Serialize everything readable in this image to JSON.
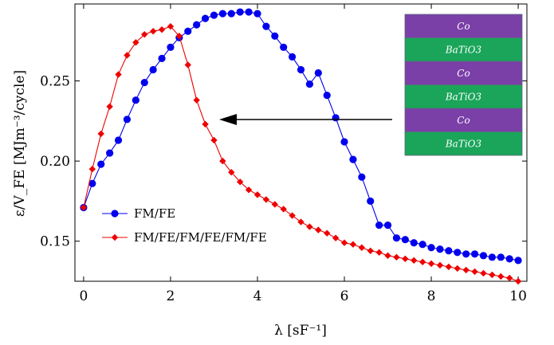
{
  "chart_data": {
    "type": "line",
    "xlabel": "λ [sF⁻¹]",
    "ylabel": "ε/V_FE [MJm⁻³/cycle]",
    "xlim": [
      -0.2,
      10.2
    ],
    "ylim": [
      0.125,
      0.298
    ],
    "xticks": [
      0,
      2,
      4,
      6,
      8,
      10
    ],
    "yticks": [
      0.15,
      0.2,
      0.25
    ],
    "ytick_labels": [
      "0.15",
      "0.20",
      "0.25"
    ],
    "grid": false,
    "legend": "lower-left",
    "series": [
      {
        "name": "FM/FE",
        "color": "#0000ee",
        "marker": "circle",
        "x": [
          0,
          0.2,
          0.4,
          0.6,
          0.8,
          1.0,
          1.2,
          1.4,
          1.6,
          1.8,
          2.0,
          2.2,
          2.4,
          2.6,
          2.8,
          3.0,
          3.2,
          3.4,
          3.6,
          3.8,
          4.0,
          4.2,
          4.4,
          4.6,
          4.8,
          5.0,
          5.2,
          5.4,
          5.6,
          5.8,
          6.0,
          6.2,
          6.4,
          6.6,
          6.8,
          7.0,
          7.2,
          7.4,
          7.6,
          7.8,
          8.0,
          8.2,
          8.4,
          8.6,
          8.8,
          9.0,
          9.2,
          9.4,
          9.6,
          9.8,
          10.0
        ],
        "y": [
          0.171,
          0.186,
          0.198,
          0.205,
          0.213,
          0.226,
          0.238,
          0.249,
          0.257,
          0.264,
          0.271,
          0.277,
          0.281,
          0.285,
          0.289,
          0.291,
          0.292,
          0.292,
          0.293,
          0.293,
          0.292,
          0.284,
          0.278,
          0.271,
          0.265,
          0.257,
          0.248,
          0.255,
          0.241,
          0.227,
          0.212,
          0.201,
          0.19,
          0.175,
          0.16,
          0.16,
          0.152,
          0.151,
          0.149,
          0.148,
          0.146,
          0.145,
          0.144,
          0.143,
          0.142,
          0.142,
          0.141,
          0.14,
          0.14,
          0.139,
          0.138
        ]
      },
      {
        "name": "FM/FE/FM/FE/FM/FE",
        "color": "#ee0000",
        "marker": "diamond",
        "x": [
          0,
          0.2,
          0.4,
          0.6,
          0.8,
          1.0,
          1.2,
          1.4,
          1.6,
          1.8,
          2.0,
          2.2,
          2.4,
          2.6,
          2.8,
          3.0,
          3.2,
          3.4,
          3.6,
          3.8,
          4.0,
          4.2,
          4.4,
          4.6,
          4.8,
          5.0,
          5.2,
          5.4,
          5.6,
          5.8,
          6.0,
          6.2,
          6.4,
          6.6,
          6.8,
          7.0,
          7.2,
          7.4,
          7.6,
          7.8,
          8.0,
          8.2,
          8.4,
          8.6,
          8.8,
          9.0,
          9.2,
          9.4,
          9.6,
          9.8,
          10.0
        ],
        "y": [
          0.171,
          0.195,
          0.217,
          0.234,
          0.254,
          0.266,
          0.274,
          0.279,
          0.281,
          0.282,
          0.284,
          0.278,
          0.26,
          0.238,
          0.223,
          0.213,
          0.2,
          0.193,
          0.187,
          0.182,
          0.179,
          0.176,
          0.173,
          0.17,
          0.166,
          0.162,
          0.159,
          0.157,
          0.155,
          0.152,
          0.149,
          0.148,
          0.146,
          0.144,
          0.143,
          0.141,
          0.14,
          0.139,
          0.138,
          0.137,
          0.136,
          0.135,
          0.134,
          0.133,
          0.132,
          0.131,
          0.13,
          0.129,
          0.128,
          0.127,
          0.125
        ]
      }
    ]
  },
  "inset": {
    "layers": [
      {
        "label": "Co",
        "color": "#7b3fa8"
      },
      {
        "label": "BaTiO3",
        "color": "#1aa55a"
      },
      {
        "label": "Co",
        "color": "#7b3fa8"
      },
      {
        "label": "BaTiO3",
        "color": "#1aa55a"
      },
      {
        "label": "Co",
        "color": "#7b3fa8"
      },
      {
        "label": "BaTiO3",
        "color": "#1aa55a"
      }
    ]
  }
}
